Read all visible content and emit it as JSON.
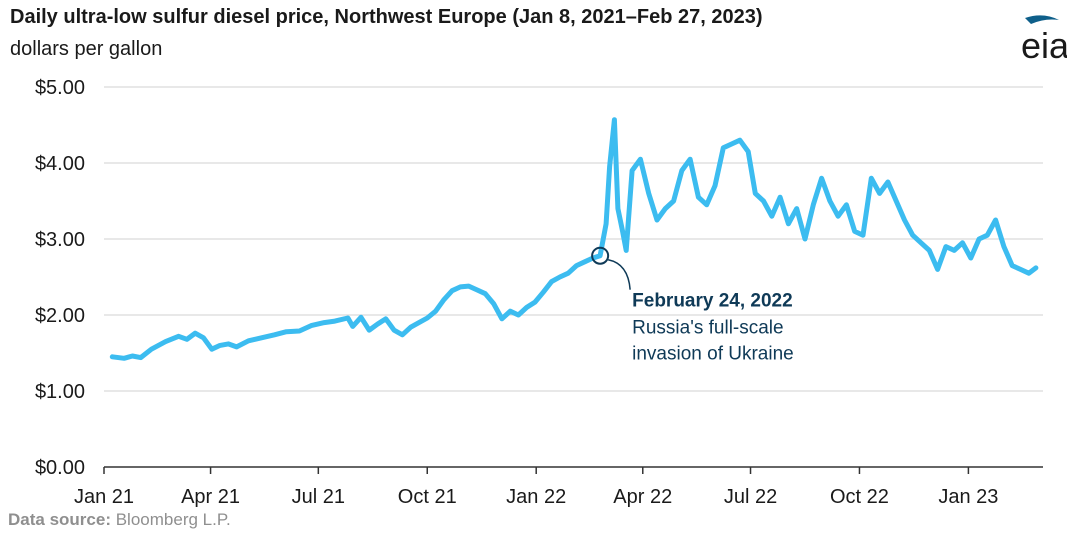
{
  "title": "Daily ultra-low sulfur diesel price, Northwest Europe (Jan 8, 2021–Feb 27, 2023)",
  "subtitle": "dollars per gallon",
  "logo": {
    "text": "eia",
    "icon": "eia-logo-swoosh"
  },
  "source": {
    "label": "Data source:",
    "value": "Bloomberg L.P."
  },
  "colors": {
    "series": "#3cbcf0",
    "annotation": "#0f3a57",
    "grid": "#d9d9d9",
    "axis": "#333333"
  },
  "chart_data": {
    "type": "line",
    "title": "Daily ultra-low sulfur diesel price, Northwest Europe (Jan 8, 2021–Feb 27, 2023)",
    "ylabel": "dollars per gallon",
    "ylim": [
      0,
      5
    ],
    "yticks": [
      0,
      1,
      2,
      3,
      4,
      5
    ],
    "ytick_labels": [
      "$0.00",
      "$1.00",
      "$2.00",
      "$3.00",
      "$4.00",
      "$5.00"
    ],
    "xlim": [
      "2021-01-01",
      "2023-03-05"
    ],
    "xticks": [
      "2021-01-01",
      "2021-04-01",
      "2021-07-01",
      "2021-10-01",
      "2022-01-01",
      "2022-04-01",
      "2022-07-01",
      "2022-10-01",
      "2023-01-01"
    ],
    "xtick_labels": [
      "Jan 21",
      "Apr 21",
      "Jul 21",
      "Oct 21",
      "Jan 22",
      "Apr 22",
      "Jul 22",
      "Oct 22",
      "Jan 23"
    ],
    "grid": true,
    "series": [
      {
        "points": [
          [
            "2021-01-08",
            1.45
          ],
          [
            "2021-01-18",
            1.43
          ],
          [
            "2021-01-25",
            1.46
          ],
          [
            "2021-02-01",
            1.44
          ],
          [
            "2021-02-10",
            1.55
          ],
          [
            "2021-02-22",
            1.65
          ],
          [
            "2021-03-05",
            1.72
          ],
          [
            "2021-03-12",
            1.68
          ],
          [
            "2021-03-19",
            1.76
          ],
          [
            "2021-03-26",
            1.7
          ],
          [
            "2021-04-02",
            1.55
          ],
          [
            "2021-04-09",
            1.6
          ],
          [
            "2021-04-16",
            1.62
          ],
          [
            "2021-04-23",
            1.58
          ],
          [
            "2021-05-03",
            1.66
          ],
          [
            "2021-05-14",
            1.7
          ],
          [
            "2021-05-25",
            1.74
          ],
          [
            "2021-06-04",
            1.78
          ],
          [
            "2021-06-15",
            1.79
          ],
          [
            "2021-06-25",
            1.86
          ],
          [
            "2021-07-06",
            1.9
          ],
          [
            "2021-07-15",
            1.92
          ],
          [
            "2021-07-26",
            1.96
          ],
          [
            "2021-07-30",
            1.85
          ],
          [
            "2021-08-06",
            1.97
          ],
          [
            "2021-08-13",
            1.8
          ],
          [
            "2021-08-20",
            1.88
          ],
          [
            "2021-08-27",
            1.95
          ],
          [
            "2021-09-03",
            1.8
          ],
          [
            "2021-09-10",
            1.74
          ],
          [
            "2021-09-17",
            1.84
          ],
          [
            "2021-09-24",
            1.9
          ],
          [
            "2021-10-01",
            1.96
          ],
          [
            "2021-10-08",
            2.05
          ],
          [
            "2021-10-15",
            2.2
          ],
          [
            "2021-10-22",
            2.32
          ],
          [
            "2021-10-29",
            2.37
          ],
          [
            "2021-11-05",
            2.38
          ],
          [
            "2021-11-12",
            2.33
          ],
          [
            "2021-11-19",
            2.28
          ],
          [
            "2021-11-26",
            2.15
          ],
          [
            "2021-12-03",
            1.95
          ],
          [
            "2021-12-10",
            2.05
          ],
          [
            "2021-12-17",
            2.0
          ],
          [
            "2021-12-24",
            2.1
          ],
          [
            "2021-12-31",
            2.17
          ],
          [
            "2022-01-07",
            2.3
          ],
          [
            "2022-01-14",
            2.44
          ],
          [
            "2022-01-21",
            2.5
          ],
          [
            "2022-01-28",
            2.55
          ],
          [
            "2022-02-04",
            2.65
          ],
          [
            "2022-02-11",
            2.7
          ],
          [
            "2022-02-18",
            2.75
          ],
          [
            "2022-02-24",
            2.78
          ],
          [
            "2022-03-01",
            3.2
          ],
          [
            "2022-03-04",
            3.95
          ],
          [
            "2022-03-08",
            4.57
          ],
          [
            "2022-03-11",
            3.4
          ],
          [
            "2022-03-15",
            3.1
          ],
          [
            "2022-03-18",
            2.85
          ],
          [
            "2022-03-23",
            3.9
          ],
          [
            "2022-03-30",
            4.05
          ],
          [
            "2022-04-06",
            3.6
          ],
          [
            "2022-04-13",
            3.25
          ],
          [
            "2022-04-20",
            3.4
          ],
          [
            "2022-04-27",
            3.5
          ],
          [
            "2022-05-04",
            3.9
          ],
          [
            "2022-05-11",
            4.05
          ],
          [
            "2022-05-18",
            3.55
          ],
          [
            "2022-05-25",
            3.45
          ],
          [
            "2022-06-01",
            3.7
          ],
          [
            "2022-06-08",
            4.2
          ],
          [
            "2022-06-15",
            4.25
          ],
          [
            "2022-06-22",
            4.3
          ],
          [
            "2022-06-29",
            4.15
          ],
          [
            "2022-07-05",
            3.6
          ],
          [
            "2022-07-12",
            3.5
          ],
          [
            "2022-07-19",
            3.3
          ],
          [
            "2022-07-26",
            3.55
          ],
          [
            "2022-08-02",
            3.2
          ],
          [
            "2022-08-09",
            3.4
          ],
          [
            "2022-08-16",
            3.0
          ],
          [
            "2022-08-23",
            3.45
          ],
          [
            "2022-08-30",
            3.8
          ],
          [
            "2022-09-06",
            3.5
          ],
          [
            "2022-09-13",
            3.3
          ],
          [
            "2022-09-20",
            3.45
          ],
          [
            "2022-09-27",
            3.1
          ],
          [
            "2022-10-04",
            3.05
          ],
          [
            "2022-10-11",
            3.8
          ],
          [
            "2022-10-18",
            3.6
          ],
          [
            "2022-10-25",
            3.75
          ],
          [
            "2022-11-01",
            3.5
          ],
          [
            "2022-11-08",
            3.25
          ],
          [
            "2022-11-15",
            3.05
          ],
          [
            "2022-11-22",
            2.95
          ],
          [
            "2022-11-29",
            2.85
          ],
          [
            "2022-12-06",
            2.6
          ],
          [
            "2022-12-13",
            2.9
          ],
          [
            "2022-12-20",
            2.85
          ],
          [
            "2022-12-27",
            2.95
          ],
          [
            "2023-01-03",
            2.75
          ],
          [
            "2023-01-10",
            3.0
          ],
          [
            "2023-01-17",
            3.05
          ],
          [
            "2023-01-24",
            3.25
          ],
          [
            "2023-01-31",
            2.9
          ],
          [
            "2023-02-07",
            2.65
          ],
          [
            "2023-02-14",
            2.6
          ],
          [
            "2023-02-21",
            2.55
          ],
          [
            "2023-02-27",
            2.62
          ]
        ]
      }
    ],
    "annotation": {
      "date": "2022-02-24",
      "value": 2.78,
      "title": "February 24, 2022",
      "lines": [
        "Russia's full-scale",
        "invasion of Ukraine"
      ]
    }
  }
}
